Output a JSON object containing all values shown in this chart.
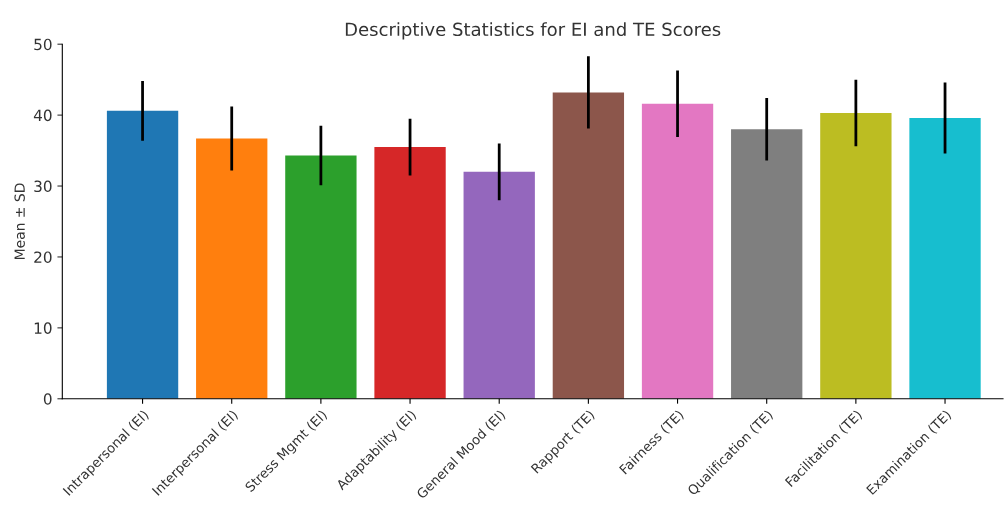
{
  "chart_data": {
    "type": "bar",
    "title": "Descriptive Statistics for EI and TE Scores",
    "ylabel": "Mean ± SD",
    "categories": [
      "Intrapersonal (EI)",
      "Interpersonal (EI)",
      "Stress Mgmt (EI)",
      "Adaptability (EI)",
      "General Mood (EI)",
      "Rapport (TE)",
      "Fairness (TE)",
      "Qualification (TE)",
      "Facilitation (TE)",
      "Examination (TE)"
    ],
    "values": [
      40.6,
      36.7,
      34.3,
      35.5,
      32.0,
      43.2,
      41.6,
      38.0,
      40.3,
      39.6
    ],
    "errors": [
      4.2,
      4.5,
      4.2,
      4.0,
      4.0,
      5.1,
      4.7,
      4.4,
      4.7,
      5.0
    ],
    "colors": [
      "#1f77b4",
      "#ff7f0e",
      "#2ca02c",
      "#d62728",
      "#9467bd",
      "#8c564b",
      "#e377c2",
      "#7f7f7f",
      "#bcbd22",
      "#17becf"
    ],
    "ylim": [
      0,
      50
    ],
    "yticks": [
      0,
      10,
      20,
      30,
      40,
      50
    ],
    "grid": false,
    "legend": false
  }
}
